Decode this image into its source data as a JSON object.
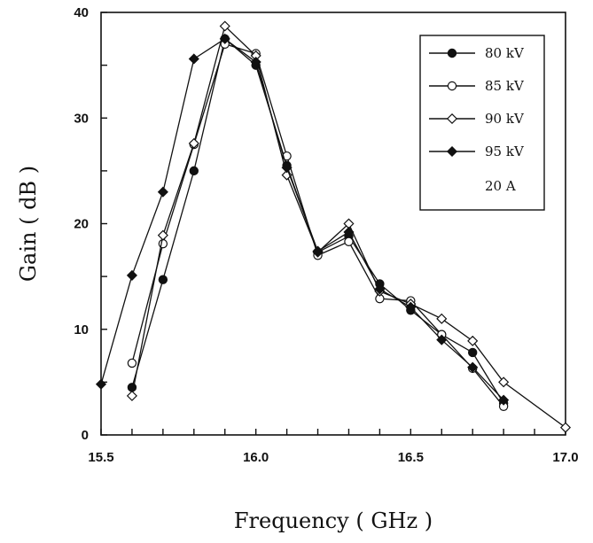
{
  "chart_data": {
    "type": "line",
    "xlabel": "Frequency ( GHz )",
    "ylabel": "Gain ( dB )",
    "xlim": [
      15.5,
      17.0
    ],
    "ylim": [
      0,
      40
    ],
    "x_ticks": [
      15.5,
      15.6,
      15.7,
      15.8,
      15.9,
      16.0,
      16.1,
      16.2,
      16.3,
      16.4,
      16.5,
      16.6,
      16.7,
      16.8,
      16.9,
      17.0
    ],
    "x_tick_labels": [
      "15.5",
      "16.0",
      "16.5",
      "17.0"
    ],
    "x_tick_label_values": [
      15.5,
      16.0,
      16.5,
      17.0
    ],
    "y_ticks": [
      0,
      5,
      10,
      15,
      20,
      25,
      30,
      35,
      40
    ],
    "y_tick_labels": [
      "0",
      "10",
      "20",
      "30",
      "40"
    ],
    "y_tick_label_values": [
      0,
      10,
      20,
      30,
      40
    ],
    "grid": false,
    "legend_position": "top-right",
    "legend_note": "20 A",
    "series": [
      {
        "name": "80 kV",
        "marker": "filled-circle",
        "x": [
          15.6,
          15.7,
          15.8,
          15.9,
          16.0,
          16.1,
          16.2,
          16.3,
          16.4,
          16.5,
          16.6,
          16.7,
          16.8
        ],
        "y": [
          4.5,
          14.7,
          25.0,
          37.5,
          35.0,
          25.5,
          17.3,
          18.8,
          14.3,
          11.8,
          9.5,
          7.8,
          3.0
        ]
      },
      {
        "name": "85 kV",
        "marker": "open-circle",
        "x": [
          15.6,
          15.7,
          15.8,
          15.9,
          16.0,
          16.1,
          16.2,
          16.3,
          16.4,
          16.5,
          16.6,
          16.7,
          16.8
        ],
        "y": [
          6.8,
          18.1,
          27.5,
          37.0,
          36.1,
          26.4,
          17.0,
          18.3,
          12.9,
          12.7,
          9.5,
          6.3,
          2.7
        ]
      },
      {
        "name": "90 kV",
        "marker": "open-diamond",
        "x": [
          15.6,
          15.7,
          15.8,
          15.9,
          16.0,
          16.1,
          16.2,
          16.3,
          16.4,
          16.5,
          16.6,
          16.7,
          16.8,
          17.0
        ],
        "y": [
          3.7,
          18.9,
          27.6,
          38.7,
          35.9,
          24.6,
          17.3,
          20.0,
          13.6,
          12.4,
          11.0,
          8.9,
          5.0,
          0.7
        ]
      },
      {
        "name": "95 kV",
        "marker": "filled-diamond",
        "x": [
          15.5,
          15.6,
          15.7,
          15.8,
          15.9,
          16.0,
          16.1,
          16.2,
          16.3,
          16.4,
          16.5,
          16.6,
          16.7,
          16.8
        ],
        "y": [
          4.8,
          15.1,
          23.0,
          35.6,
          37.5,
          35.3,
          25.3,
          17.4,
          19.2,
          13.8,
          12.1,
          9.0,
          6.4,
          3.3
        ]
      }
    ]
  }
}
